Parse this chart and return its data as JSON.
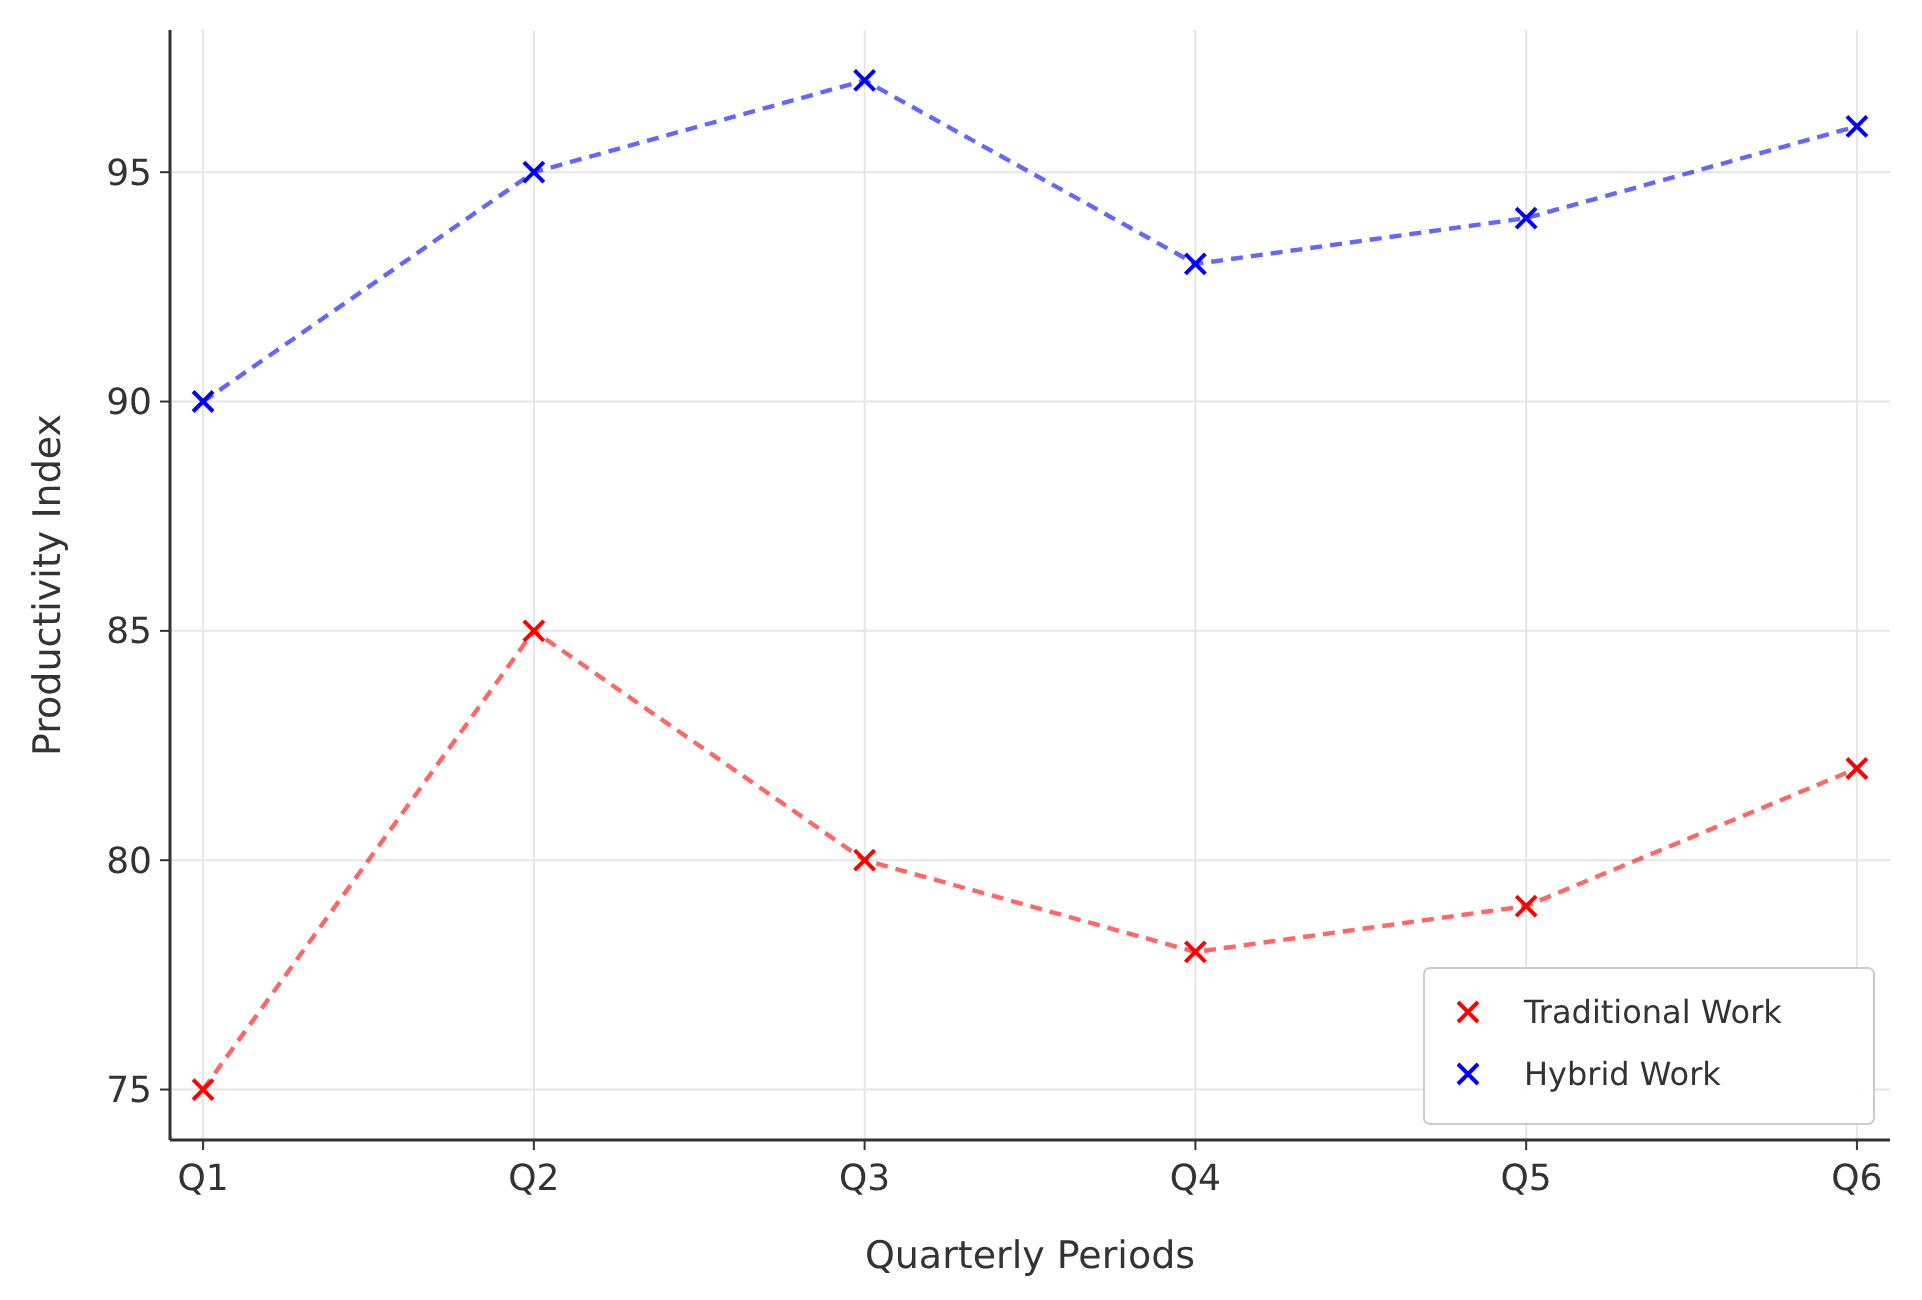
{
  "chart_data": {
    "type": "line",
    "xlabel": "Quarterly Periods",
    "ylabel": "Productivity Index",
    "categories": [
      "Q1",
      "Q2",
      "Q3",
      "Q4",
      "Q5",
      "Q6"
    ],
    "series": [
      {
        "name": "Traditional Work",
        "color": "#ff0000",
        "values": [
          75,
          85,
          80,
          78,
          79,
          82
        ]
      },
      {
        "name": "Hybrid Work",
        "color": "#0000ff",
        "values": [
          90,
          95,
          97,
          93,
          94,
          96
        ]
      }
    ],
    "ylim": [
      73.9,
      98.1
    ],
    "yticks": [
      75,
      80,
      85,
      90,
      95
    ],
    "grid": true,
    "legend": "bottom right",
    "marker": "cross",
    "line_style": "dashed"
  }
}
